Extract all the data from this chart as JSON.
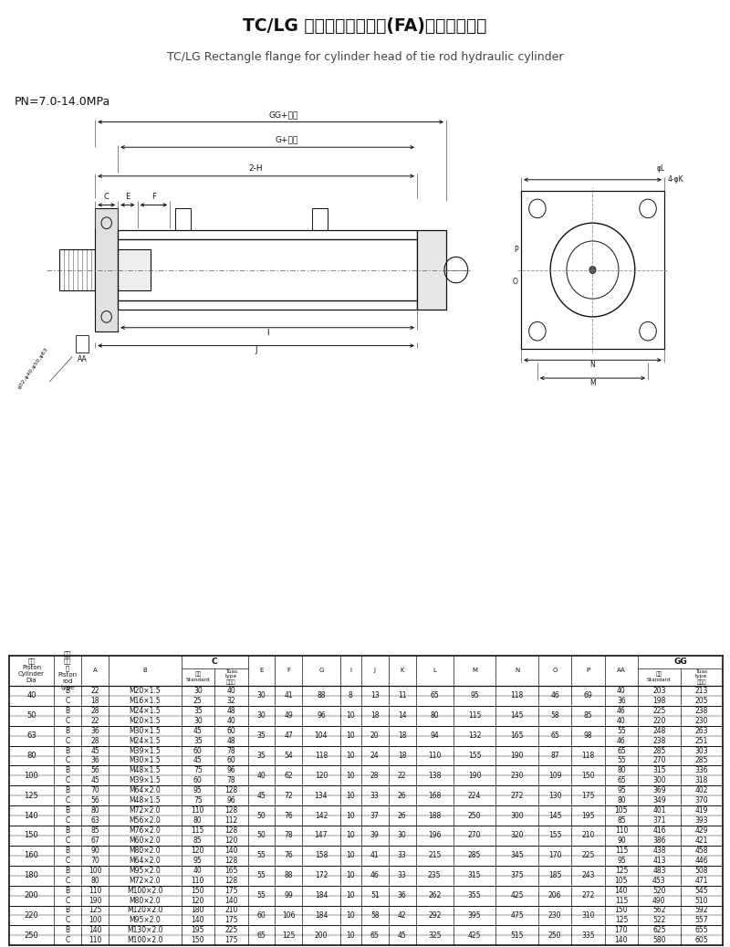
{
  "title_cn": "TC/LG 缸头长方形法兰型(FA)拉杆式液压缸",
  "title_en": "TC/LG Rectangle flange for cylinder head of tie rod hydraulic cylinder",
  "pressure": "PN=7.0-14.0MPa",
  "table_data": [
    [
      "40",
      "B",
      "22",
      "M20×1.5",
      "30",
      "40",
      "30",
      "41",
      "88",
      "8",
      "13",
      "11",
      "65",
      "95",
      "118",
      "46",
      "69",
      "40",
      "203",
      "213"
    ],
    [
      "40",
      "C",
      "18",
      "M16×1.5",
      "25",
      "32",
      "30",
      "41",
      "88",
      "8",
      "13",
      "11",
      "65",
      "95",
      "118",
      "46",
      "69",
      "36",
      "198",
      "205"
    ],
    [
      "50",
      "B",
      "28",
      "M24×1.5",
      "35",
      "48",
      "30",
      "49",
      "96",
      "10",
      "18",
      "14",
      "80",
      "115",
      "145",
      "58",
      "85",
      "46",
      "225",
      "238"
    ],
    [
      "50",
      "C",
      "22",
      "M20×1.5",
      "30",
      "40",
      "30",
      "49",
      "96",
      "10",
      "18",
      "14",
      "80",
      "115",
      "145",
      "58",
      "85",
      "40",
      "220",
      "230"
    ],
    [
      "63",
      "B",
      "36",
      "M30×1.5",
      "45",
      "60",
      "35",
      "47",
      "104",
      "10",
      "20",
      "18",
      "94",
      "132",
      "165",
      "65",
      "98",
      "55",
      "248",
      "263"
    ],
    [
      "63",
      "C",
      "28",
      "M24×1.5",
      "35",
      "48",
      "35",
      "47",
      "104",
      "10",
      "20",
      "18",
      "94",
      "132",
      "165",
      "65",
      "98",
      "46",
      "238",
      "251"
    ],
    [
      "80",
      "B",
      "45",
      "M39×1.5",
      "60",
      "78",
      "35",
      "54",
      "118",
      "10",
      "24",
      "18",
      "110",
      "155",
      "190",
      "87",
      "118",
      "65",
      "285",
      "303"
    ],
    [
      "80",
      "C",
      "36",
      "M30×1.5",
      "45",
      "60",
      "35",
      "54",
      "118",
      "10",
      "24",
      "18",
      "110",
      "155",
      "190",
      "87",
      "118",
      "55",
      "270",
      "285"
    ],
    [
      "100",
      "B",
      "56",
      "M48×1.5",
      "75",
      "96",
      "40",
      "62",
      "120",
      "10",
      "28",
      "22",
      "138",
      "190",
      "230",
      "109",
      "150",
      "80",
      "315",
      "336"
    ],
    [
      "100",
      "C",
      "45",
      "M39×1.5",
      "60",
      "78",
      "40",
      "62",
      "120",
      "10",
      "28",
      "22",
      "138",
      "190",
      "230",
      "109",
      "150",
      "65",
      "300",
      "318"
    ],
    [
      "125",
      "B",
      "70",
      "M64×2.0",
      "95",
      "128",
      "45",
      "72",
      "134",
      "10",
      "33",
      "26",
      "168",
      "224",
      "272",
      "130",
      "175",
      "95",
      "369",
      "402"
    ],
    [
      "125",
      "C",
      "56",
      "M48×1.5",
      "75",
      "96",
      "45",
      "72",
      "134",
      "10",
      "33",
      "26",
      "168",
      "224",
      "272",
      "130",
      "175",
      "80",
      "349",
      "370"
    ],
    [
      "140",
      "B",
      "80",
      "M72×2.0",
      "110",
      "128",
      "50",
      "76",
      "142",
      "10",
      "37",
      "26",
      "188",
      "250",
      "300",
      "145",
      "195",
      "105",
      "401",
      "419"
    ],
    [
      "140",
      "C",
      "63",
      "M56×2.0",
      "80",
      "112",
      "50",
      "76",
      "142",
      "10",
      "37",
      "26",
      "188",
      "250",
      "300",
      "145",
      "195",
      "85",
      "371",
      "393"
    ],
    [
      "150",
      "B",
      "85",
      "M76×2.0",
      "115",
      "128",
      "50",
      "78",
      "147",
      "10",
      "39",
      "30",
      "196",
      "270",
      "320",
      "155",
      "210",
      "110",
      "416",
      "429"
    ],
    [
      "150",
      "C",
      "67",
      "M60×2.0",
      "85",
      "120",
      "50",
      "78",
      "147",
      "10",
      "39",
      "30",
      "196",
      "270",
      "320",
      "155",
      "210",
      "90",
      "386",
      "421"
    ],
    [
      "160",
      "B",
      "90",
      "M80×2.0",
      "120",
      "140",
      "55",
      "76",
      "158",
      "10",
      "41",
      "33",
      "215",
      "285",
      "345",
      "170",
      "225",
      "115",
      "438",
      "458"
    ],
    [
      "160",
      "C",
      "70",
      "M64×2.0",
      "95",
      "128",
      "55",
      "76",
      "158",
      "10",
      "41",
      "33",
      "215",
      "285",
      "345",
      "170",
      "225",
      "95",
      "413",
      "446"
    ],
    [
      "180",
      "B",
      "100",
      "M95×2.0",
      "40",
      "165",
      "55",
      "88",
      "172",
      "10",
      "46",
      "33",
      "235",
      "315",
      "375",
      "185",
      "243",
      "125",
      "483",
      "508"
    ],
    [
      "180",
      "C",
      "80",
      "M72×2.0",
      "110",
      "128",
      "55",
      "88",
      "172",
      "10",
      "46",
      "33",
      "235",
      "315",
      "375",
      "185",
      "243",
      "105",
      "453",
      "471"
    ],
    [
      "200",
      "B",
      "110",
      "M100×2.0",
      "150",
      "175",
      "55",
      "99",
      "184",
      "10",
      "51",
      "36",
      "262",
      "355",
      "425",
      "206",
      "272",
      "140",
      "520",
      "545"
    ],
    [
      "200",
      "C",
      "190",
      "M80×2.0",
      "120",
      "140",
      "55",
      "99",
      "184",
      "10",
      "51",
      "36",
      "262",
      "355",
      "425",
      "206",
      "272",
      "115",
      "490",
      "510"
    ],
    [
      "220",
      "B",
      "125",
      "M120×2.0",
      "180",
      "210",
      "60",
      "106",
      "184",
      "10",
      "58",
      "42",
      "292",
      "395",
      "475",
      "230",
      "310",
      "150",
      "562",
      "592"
    ],
    [
      "220",
      "C",
      "100",
      "M95×2.0",
      "140",
      "175",
      "60",
      "106",
      "184",
      "10",
      "58",
      "42",
      "292",
      "395",
      "475",
      "230",
      "310",
      "125",
      "522",
      "557"
    ],
    [
      "250",
      "B",
      "140",
      "M130×2.0",
      "195",
      "225",
      "65",
      "125",
      "200",
      "10",
      "65",
      "45",
      "325",
      "425",
      "515",
      "250",
      "335",
      "170",
      "625",
      "655"
    ],
    [
      "250",
      "C",
      "110",
      "M100×2.0",
      "150",
      "175",
      "65",
      "125",
      "200",
      "10",
      "65",
      "45",
      "325",
      "425",
      "515",
      "250",
      "335",
      "140",
      "580",
      "605"
    ]
  ],
  "col_widths_rel": [
    3.0,
    1.8,
    1.8,
    4.8,
    2.2,
    2.2,
    1.8,
    1.8,
    2.5,
    1.4,
    1.8,
    1.8,
    2.5,
    2.8,
    2.8,
    2.2,
    2.2,
    2.2,
    2.8,
    2.8
  ],
  "bg_color": "#ffffff"
}
